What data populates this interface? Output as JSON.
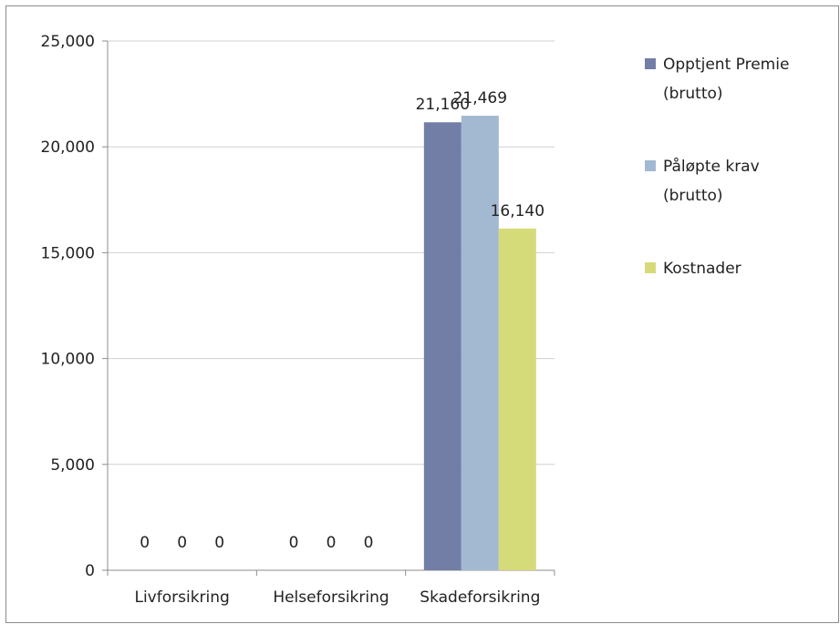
{
  "chart_data": {
    "type": "bar",
    "categories": [
      "Livforsikring",
      "Helseforsikring",
      "Skadeforsikring"
    ],
    "series": [
      {
        "name": "Opptjent Premie (brutto)",
        "legend_lines": [
          "Opptjent Premie",
          "(brutto)"
        ],
        "color": "#737ea6",
        "values": [
          0,
          0,
          21160
        ],
        "labels": [
          "0",
          "0",
          "21,160"
        ]
      },
      {
        "name": "Påløpte krav (brutto)",
        "legend_lines": [
          "Påløpte krav",
          "(brutto)"
        ],
        "color": "#a3b9d1",
        "values": [
          0,
          0,
          21469
        ],
        "labels": [
          "0",
          "0",
          "21,469"
        ]
      },
      {
        "name": "Kostnader",
        "legend_lines": [
          "Kostnader"
        ],
        "color": "#d6db7a",
        "values": [
          0,
          0,
          16140
        ],
        "labels": [
          "0",
          "0",
          "16,140"
        ]
      }
    ],
    "ylim": [
      0,
      25000
    ],
    "yticks": [
      0,
      5000,
      10000,
      15000,
      20000,
      25000
    ],
    "ytick_labels": [
      "0",
      "5,000",
      "10,000",
      "15,000",
      "20,000",
      "25,000"
    ],
    "grid": true,
    "legend_position": "right",
    "title": "",
    "xlabel": "",
    "ylabel": ""
  }
}
